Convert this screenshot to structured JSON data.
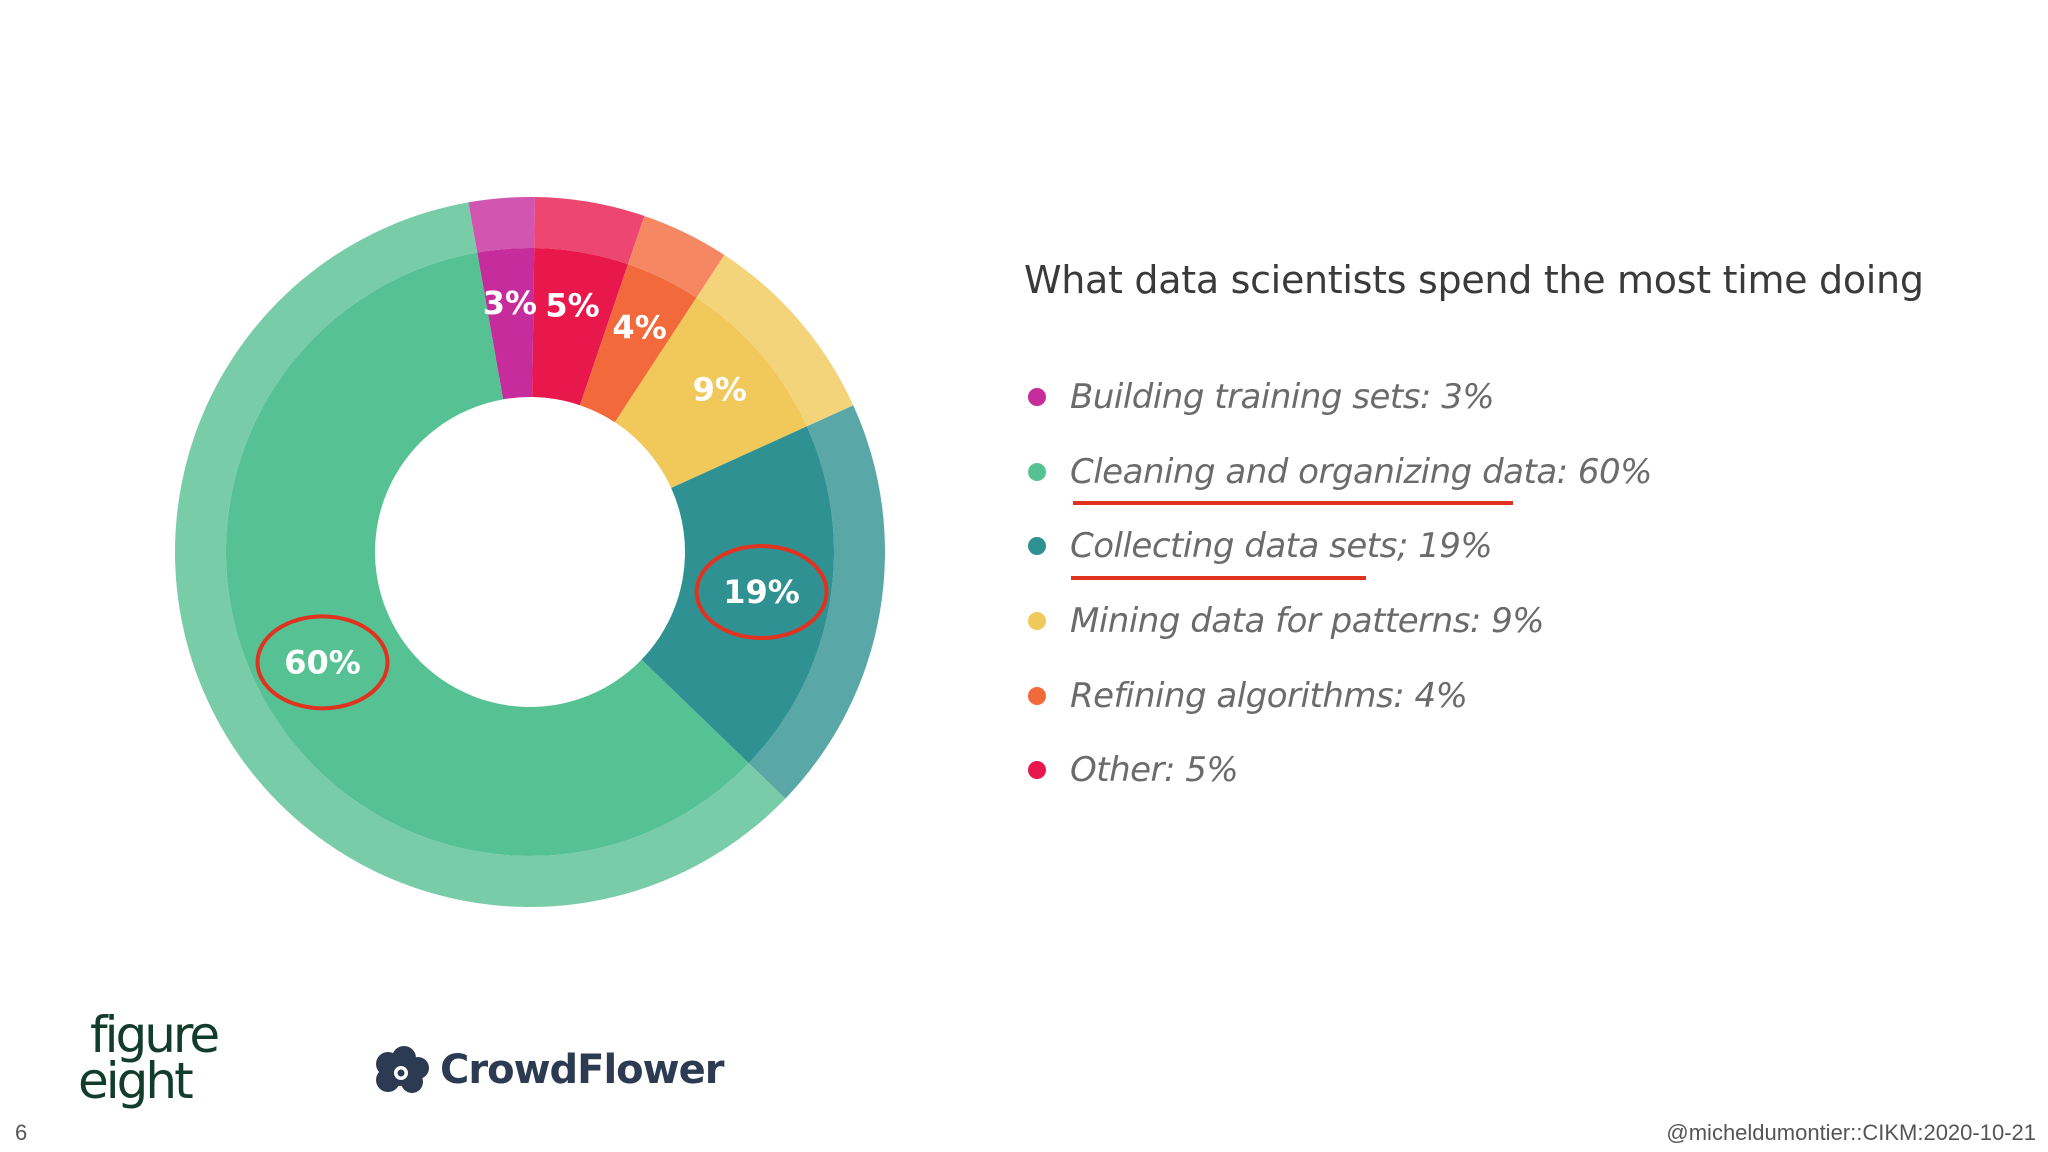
{
  "chart_data": {
    "type": "pie",
    "subtype": "donut",
    "title": "What data scientists spend the most time doing",
    "start_angle_deg": -10,
    "slices": [
      {
        "name": "Building training sets",
        "value": 3,
        "label": "3%",
        "color": "#c72c9c"
      },
      {
        "name": "Other",
        "value": 5,
        "label": "5%",
        "color": "#e8184d"
      },
      {
        "name": "Refining algorithms",
        "value": 4,
        "label": "4%",
        "color": "#f26a3c"
      },
      {
        "name": "Mining data for patterns",
        "value": 9,
        "label": "9%",
        "color": "#f0c95a"
      },
      {
        "name": "Collecting data sets",
        "value": 19,
        "label": "19%",
        "color": "#2f9191",
        "highlighted": true
      },
      {
        "name": "Cleaning and organizing data",
        "value": 60,
        "label": "60%",
        "color": "#56c192",
        "highlighted": true
      }
    ],
    "legend": [
      {
        "text": "Building training sets: 3%",
        "color": "#c72c9c"
      },
      {
        "text": "Cleaning and organizing data: 60%",
        "color": "#56c192"
      },
      {
        "text": "Collecting data sets; 19%",
        "color": "#2f9191"
      },
      {
        "text": "Mining data for patterns: 9%",
        "color": "#f0c95a"
      },
      {
        "text": "Refining algorithms: 4%",
        "color": "#f26a3c"
      },
      {
        "text": "Other: 5%",
        "color": "#e8184d"
      }
    ],
    "underlined_legend_items": [
      "Cleaning and organizing data",
      "Collecting data sets"
    ],
    "annotation_color": "#e0321f"
  },
  "logos": {
    "figure_eight": [
      "figure",
      "eight"
    ],
    "crowdflower": "CrowdFlower"
  },
  "footer": {
    "page_number": "6",
    "credit": "@micheldumontier::CIKM:2020-10-21"
  }
}
